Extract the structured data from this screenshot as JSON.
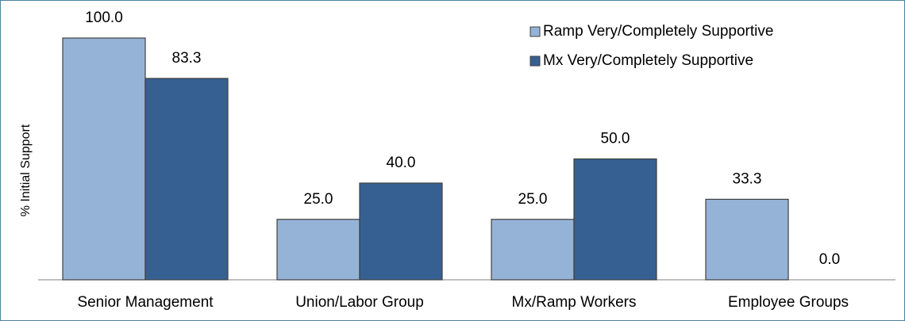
{
  "chart_data": {
    "type": "bar",
    "y_label": "% Initial Support",
    "categories": [
      "Senior Management",
      "Union/Labor Group",
      "Mx/Ramp Workers",
      "Employee Groups"
    ],
    "series": [
      {
        "name": "Ramp Very/Completely Supportive",
        "color": "#95b3d7",
        "values": [
          100,
          25,
          25,
          33.3
        ],
        "value_labels": [
          "100.0",
          "25.0",
          "25.0",
          "33.3"
        ]
      },
      {
        "name": "Mx Very/Completely Supportive",
        "color": "#366092",
        "values": [
          83.3,
          40,
          50,
          0
        ],
        "value_labels": [
          "83.3",
          "40.0",
          "50.0",
          "0.0"
        ]
      }
    ],
    "ylim": [
      0,
      100
    ],
    "legend": "top-right"
  }
}
